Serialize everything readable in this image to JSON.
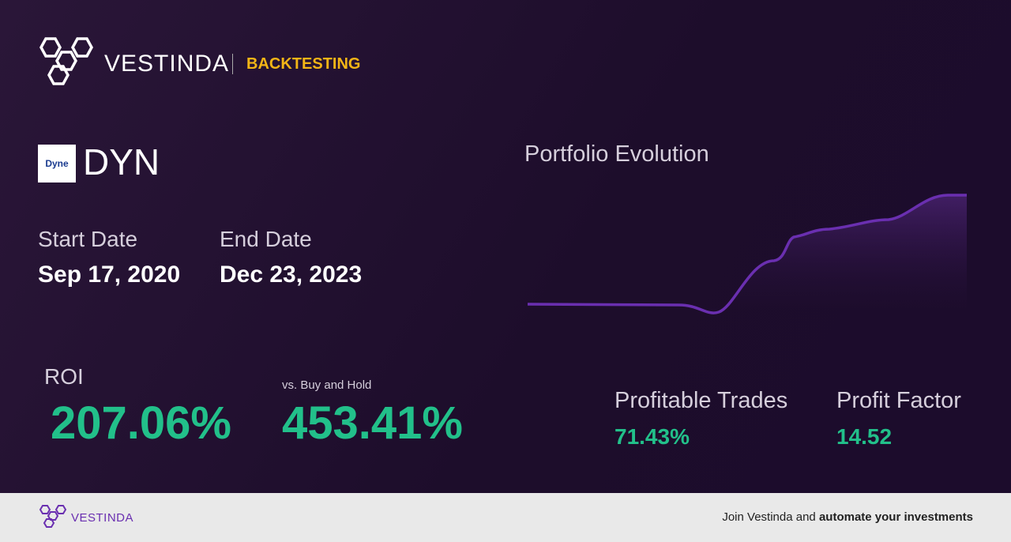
{
  "header": {
    "brand": "VESTINDA",
    "section": "BACKTESTING"
  },
  "asset": {
    "logo_text": "Dyne",
    "ticker": "DYN"
  },
  "dates": {
    "start_label": "Start Date",
    "start_value": "Sep 17, 2020",
    "end_label": "End Date",
    "end_value": "Dec 23, 2023"
  },
  "chart": {
    "title": "Portfolio Evolution"
  },
  "metrics": {
    "roi_label": "ROI",
    "roi_value": "207.06%",
    "bh_label": "vs. Buy and Hold",
    "bh_value": "453.41%",
    "trades_label": "Profitable Trades",
    "trades_value": "71.43%",
    "pf_label": "Profit Factor",
    "pf_value": "14.52"
  },
  "footer": {
    "brand": "VESTINDA",
    "text": "Join Vestinda and",
    "text_bold": "automate your investments"
  }
}
